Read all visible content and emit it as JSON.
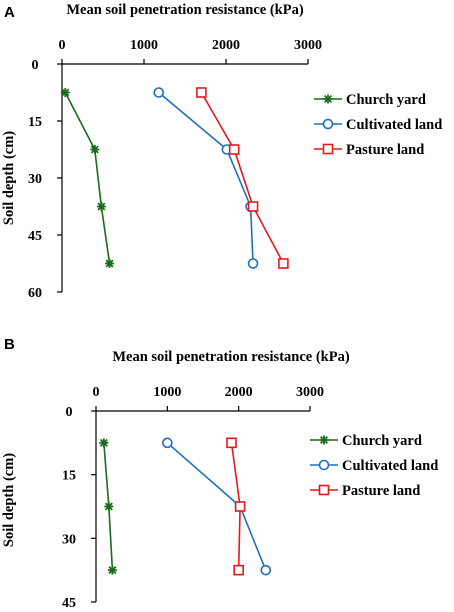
{
  "panels": [
    {
      "label": "A",
      "chart_data": {
        "type": "line",
        "orientation": "depth-profile",
        "xlabel": "Mean soil penetration resistance (kPa)",
        "ylabel": "Soil depth (cm)",
        "xlim": [
          0,
          3000
        ],
        "xticks": [
          0,
          1000,
          2000,
          3000
        ],
        "ylim": [
          0,
          60
        ],
        "yticks": [
          0,
          15,
          30,
          45,
          60
        ],
        "y_inverted": true,
        "x_axis_position": "top",
        "grid": false,
        "legend_position": "right",
        "series": [
          {
            "name": "Church yard",
            "color": "#1a6b1a",
            "marker": "star",
            "x": [
              40,
              400,
              480,
              580
            ],
            "y": [
              7.5,
              22.5,
              37.5,
              52.5
            ]
          },
          {
            "name": "Cultivated land",
            "color": "#1f6fbf",
            "marker": "circle",
            "x": [
              1180,
              2010,
              2300,
              2330
            ],
            "y": [
              7.5,
              22.5,
              37.5,
              52.5
            ]
          },
          {
            "name": "Pasture land",
            "color": "#e31a1c",
            "marker": "square",
            "x": [
              1700,
              2100,
              2330,
              2700
            ],
            "y": [
              7.5,
              22.5,
              37.5,
              52.5
            ]
          }
        ]
      }
    },
    {
      "label": "B",
      "chart_data": {
        "type": "line",
        "orientation": "depth-profile",
        "xlabel": "Mean soil penetration resistance (kPa)",
        "ylabel": "Soil depth (cm)",
        "xlim": [
          0,
          3000
        ],
        "xticks": [
          0,
          1000,
          2000,
          3000
        ],
        "ylim": [
          0,
          45
        ],
        "yticks": [
          0,
          15,
          30,
          45
        ],
        "y_inverted": true,
        "x_axis_position": "top",
        "grid": false,
        "legend_position": "right",
        "series": [
          {
            "name": "Church yard",
            "color": "#1a6b1a",
            "marker": "star",
            "x": [
              110,
              180,
              230
            ],
            "y": [
              7.5,
              22.5,
              37.5
            ]
          },
          {
            "name": "Cultivated land",
            "color": "#1f6fbf",
            "marker": "circle",
            "x": [
              1000,
              2020,
              2380
            ],
            "y": [
              7.5,
              22.5,
              37.5
            ]
          },
          {
            "name": "Pasture land",
            "color": "#e31a1c",
            "marker": "square",
            "x": [
              1900,
              2020,
              2000
            ],
            "y": [
              7.5,
              22.5,
              37.5
            ]
          }
        ]
      }
    }
  ]
}
